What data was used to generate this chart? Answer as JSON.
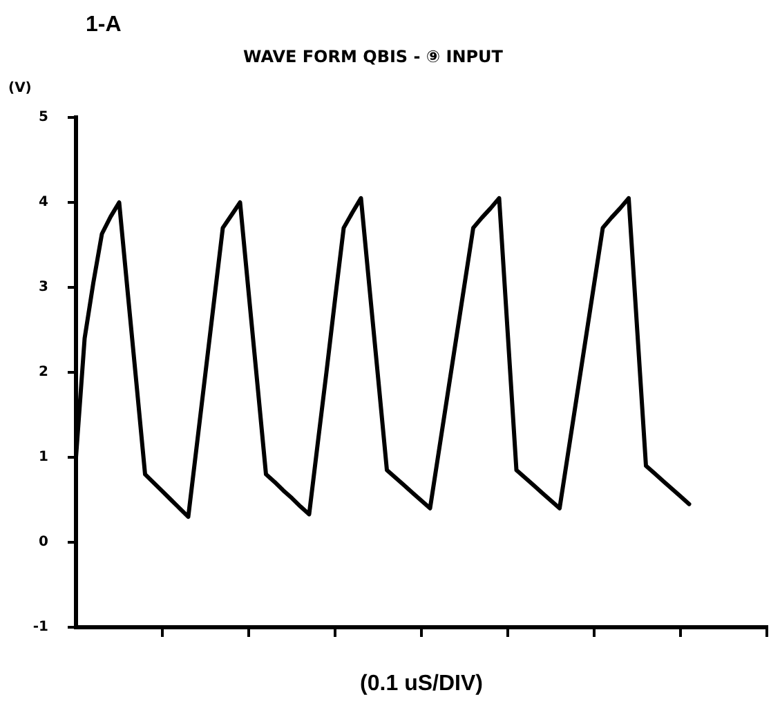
{
  "chart_data": {
    "type": "line",
    "title": "WAVE FORM QBIS - ⑨ INPUT",
    "ylabel": "(V)",
    "xlabel": "(0.1 uS/DIV)",
    "annotations": [
      "1-A"
    ],
    "categories": [
      null,
      null,
      null,
      null,
      null,
      null,
      null,
      null,
      null,
      null,
      null,
      null,
      null,
      null,
      null,
      null,
      null,
      null,
      null,
      null,
      null,
      null,
      null,
      null,
      null,
      null,
      null,
      null,
      null,
      null,
      null,
      null,
      null,
      null,
      null,
      null,
      null,
      null,
      null,
      null,
      null,
      null,
      null,
      null,
      null,
      null,
      null,
      null,
      null,
      null,
      null,
      null,
      null,
      null,
      null,
      null,
      null,
      null,
      null,
      null,
      null,
      null,
      null,
      null,
      null,
      null,
      null,
      null,
      null,
      null,
      null,
      null,
      null,
      null,
      null,
      null,
      null,
      null,
      null,
      null,
      null
    ],
    "series": [
      {
        "color": "#000000",
        "values": [
          1.0,
          2.4,
          3.05,
          3.63,
          3.83,
          4.0,
          2.93,
          1.87,
          0.8,
          0.7,
          0.6,
          0.5,
          0.4,
          0.3,
          1.15,
          2.0,
          2.85,
          3.7,
          3.85,
          4.0,
          2.93,
          1.87,
          0.8,
          0.71,
          0.61,
          0.52,
          0.42,
          0.33,
          1.17,
          2.0,
          2.86,
          3.7,
          3.88,
          4.05,
          2.98,
          1.92,
          0.85,
          0.76,
          0.67,
          0.58,
          0.49,
          0.4,
          1.06,
          1.72,
          2.38,
          3.04,
          3.7,
          3.82,
          3.93,
          4.05,
          2.45,
          0.85,
          0.76,
          0.67,
          0.58,
          0.49,
          0.4,
          1.06,
          1.72,
          2.38,
          3.04,
          3.7,
          3.82,
          3.93,
          4.05,
          2.48,
          0.9,
          0.81,
          0.72,
          0.63,
          0.54,
          0.45,
          null,
          null,
          null,
          null,
          null,
          null,
          null,
          null,
          null
        ]
      }
    ],
    "ylim": [
      -1,
      5
    ],
    "yticks": [
      -1,
      0,
      1,
      2,
      3,
      4,
      5
    ],
    "tick_labels": "y",
    "grid": false,
    "legend": false,
    "marker": "none",
    "line_style": "solid"
  }
}
